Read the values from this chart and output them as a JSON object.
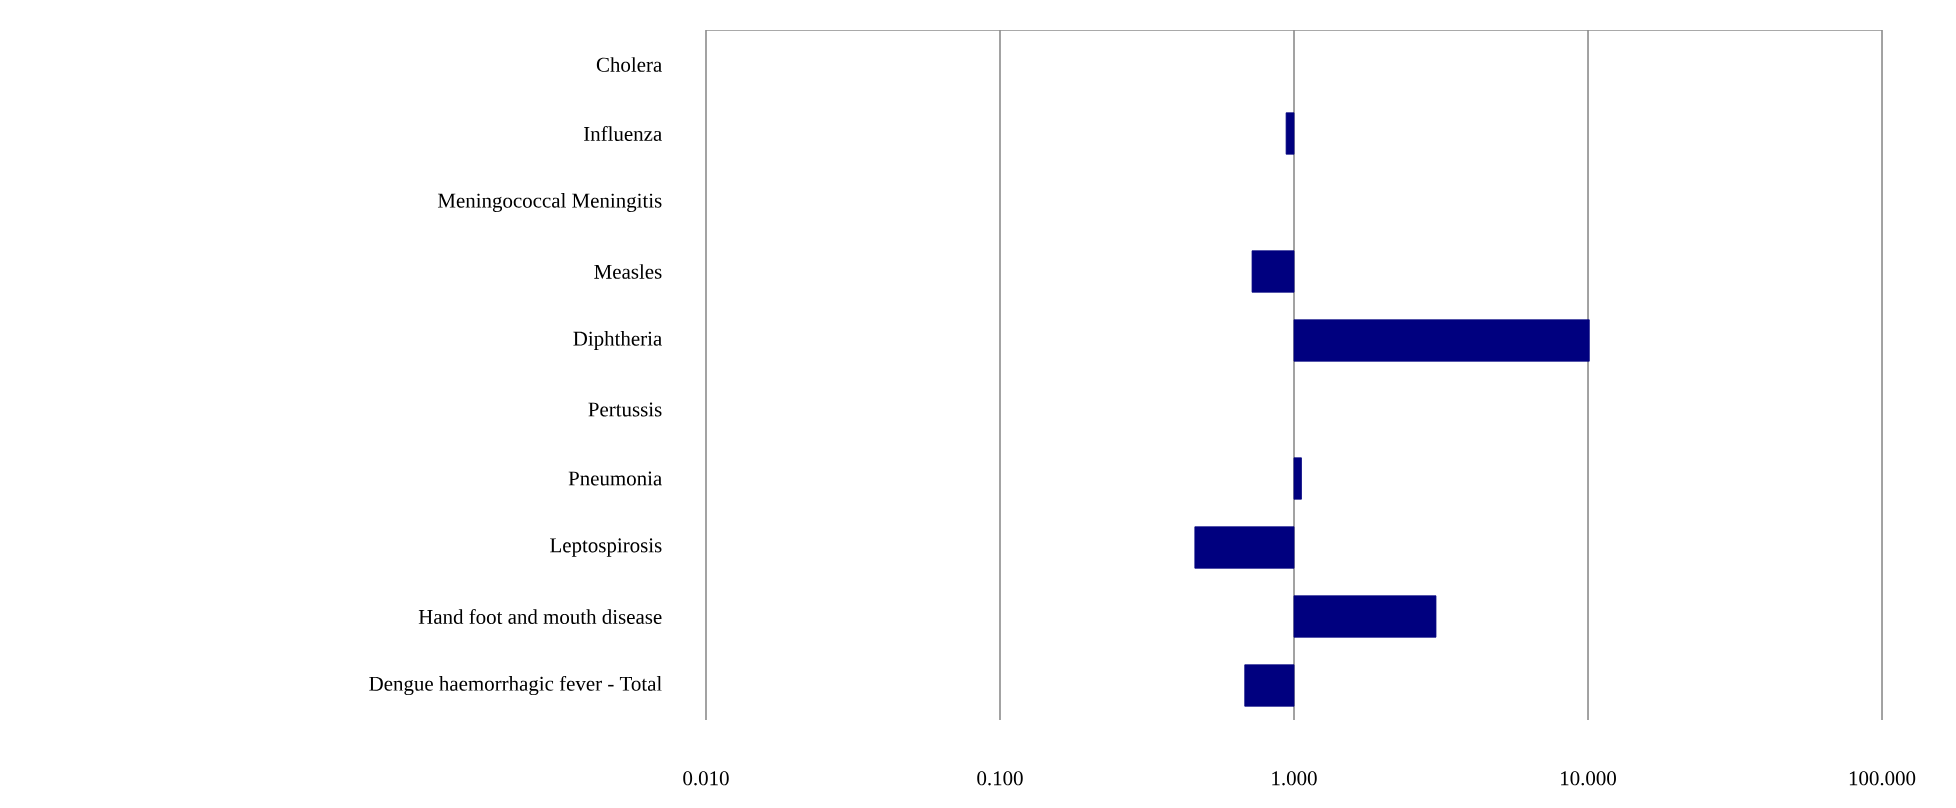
{
  "chart_data": {
    "type": "bar",
    "orientation": "horizontal",
    "log": "x",
    "categories": [
      "Cholera",
      "Influenza",
      "Meningococcal Meningitis",
      "Measles",
      "Diphtheria",
      "Pertussis",
      "Pneumonia",
      "Leptospirosis",
      "Hand foot and mouth disease",
      "Dengue haemorrhagic fever - Total"
    ],
    "values": [
      null,
      -0.06,
      null,
      -0.28,
      9.1,
      null,
      0.06,
      -0.54,
      2.04,
      -0.32
    ],
    "base": [
      null,
      1,
      null,
      1,
      1,
      null,
      1,
      1,
      1,
      1
    ],
    "color": "#00007f",
    "xlim": [
      0.01,
      100
    ],
    "xticks": [
      {
        "value": 0.01,
        "label": "0.010"
      },
      {
        "value": 0.1,
        "label": "0.100"
      },
      {
        "value": 1,
        "label": "1.000"
      },
      {
        "value": 10,
        "label": "10.000"
      },
      {
        "value": 100,
        "label": "100.000"
      }
    ],
    "grid": "x"
  }
}
